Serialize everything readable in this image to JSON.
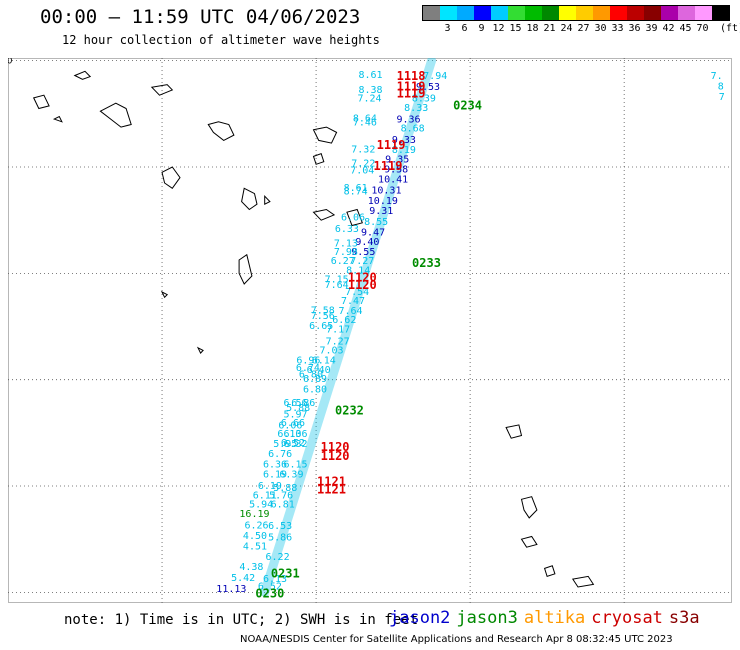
{
  "header": {
    "title": "00:00 – 11:59 UTC 04/06/2023",
    "subtitle": "12 hour collection of altimeter wave heights"
  },
  "legend": {
    "unit_label": "(ft)",
    "bins": [
      {
        "label": "",
        "color": "#7f7f7f"
      },
      {
        "label": "3",
        "color": "#00e5ff"
      },
      {
        "label": "6",
        "color": "#00aaff"
      },
      {
        "label": "9",
        "color": "#0000ff"
      },
      {
        "label": "12",
        "color": "#00ccff"
      },
      {
        "label": "15",
        "color": "#33dd33"
      },
      {
        "label": "18",
        "color": "#00bb00"
      },
      {
        "label": "21",
        "color": "#008800"
      },
      {
        "label": "24",
        "color": "#ffff00"
      },
      {
        "label": "27",
        "color": "#ffcc00"
      },
      {
        "label": "30",
        "color": "#ff9900"
      },
      {
        "label": "33",
        "color": "#ff0000"
      },
      {
        "label": "36",
        "color": "#bb0000"
      },
      {
        "label": "39",
        "color": "#880000"
      },
      {
        "label": "42",
        "color": "#aa00aa"
      },
      {
        "label": "45",
        "color": "#dd66dd"
      },
      {
        "label": "70",
        "color": "#ff99ff"
      },
      {
        "label": "",
        "color": "#000000"
      }
    ]
  },
  "map": {
    "lon_ticks": [
      "165",
      "168",
      "171",
      "174",
      "177"
    ],
    "lat_ticks": [
      "0",
      "2",
      "4",
      "6",
      "8",
      "10"
    ],
    "lon_range": [
      165,
      179.1
    ],
    "lat_range": [
      -0.2,
      10.05
    ],
    "grid": true,
    "projection_note": "x = lon, y = lat (degrees)"
  },
  "colors": {
    "cyan": "#00c0e8",
    "navy": "#0000b4",
    "red": "#e00000",
    "green": "#008c00",
    "dark_red": "#c80000",
    "orange": "#ff9900",
    "track": "#00c0e8",
    "coast": "#000000"
  },
  "track": [
    [
      170.0,
      0.0
    ],
    [
      173.25,
      10.0
    ]
  ],
  "observations": [
    {
      "lon": 172.06,
      "lat": 9.75,
      "text": "8.61",
      "color": "cyan"
    },
    {
      "lon": 173.32,
      "lat": 9.73,
      "text": "7.94",
      "color": "cyan"
    },
    {
      "lon": 173.18,
      "lat": 9.52,
      "text": "9.53",
      "color": "navy"
    },
    {
      "lon": 172.06,
      "lat": 9.47,
      "text": "8.38",
      "color": "cyan"
    },
    {
      "lon": 173.1,
      "lat": 9.31,
      "text": "8.39",
      "color": "cyan"
    },
    {
      "lon": 172.04,
      "lat": 9.31,
      "text": "7.24",
      "color": "cyan"
    },
    {
      "lon": 172.95,
      "lat": 9.13,
      "text": "8.33",
      "color": "cyan"
    },
    {
      "lon": 172.8,
      "lat": 8.91,
      "text": "9.36",
      "color": "navy"
    },
    {
      "lon": 171.95,
      "lat": 8.93,
      "text": "8.64",
      "color": "cyan"
    },
    {
      "lon": 171.95,
      "lat": 8.86,
      "text": "7.46",
      "color": "cyan"
    },
    {
      "lon": 172.88,
      "lat": 8.74,
      "text": "8.68",
      "color": "cyan"
    },
    {
      "lon": 172.71,
      "lat": 8.53,
      "text": "9.33",
      "color": "navy"
    },
    {
      "lon": 171.92,
      "lat": 8.35,
      "text": "7.32",
      "color": "cyan"
    },
    {
      "lon": 172.71,
      "lat": 8.34,
      "text": "8.19",
      "color": "cyan"
    },
    {
      "lon": 172.58,
      "lat": 8.16,
      "text": "9.35",
      "color": "navy"
    },
    {
      "lon": 171.92,
      "lat": 8.08,
      "text": "7.22",
      "color": "cyan"
    },
    {
      "lon": 172.56,
      "lat": 7.97,
      "text": "9.58",
      "color": "navy"
    },
    {
      "lon": 171.9,
      "lat": 7.95,
      "text": "7.04",
      "color": "cyan"
    },
    {
      "lon": 172.5,
      "lat": 7.78,
      "text": "10.41",
      "color": "navy"
    },
    {
      "lon": 171.77,
      "lat": 7.62,
      "text": "8.61",
      "color": "cyan"
    },
    {
      "lon": 172.37,
      "lat": 7.58,
      "text": "10.31",
      "color": "navy"
    },
    {
      "lon": 171.77,
      "lat": 7.56,
      "text": "8.74",
      "color": "cyan"
    },
    {
      "lon": 172.3,
      "lat": 7.38,
      "text": "10.19",
      "color": "navy"
    },
    {
      "lon": 172.27,
      "lat": 7.19,
      "text": "9.31",
      "color": "navy"
    },
    {
      "lon": 171.72,
      "lat": 7.07,
      "text": "6.06",
      "color": "cyan"
    },
    {
      "lon": 172.17,
      "lat": 6.98,
      "text": "8.55",
      "color": "cyan"
    },
    {
      "lon": 171.6,
      "lat": 6.85,
      "text": "6.33",
      "color": "cyan"
    },
    {
      "lon": 172.11,
      "lat": 6.79,
      "text": "9.47",
      "color": "navy"
    },
    {
      "lon": 172.0,
      "lat": 6.61,
      "text": "9.40",
      "color": "navy"
    },
    {
      "lon": 171.58,
      "lat": 6.58,
      "text": "7.13",
      "color": "cyan"
    },
    {
      "lon": 171.92,
      "lat": 6.42,
      "text": "9.55",
      "color": "navy"
    },
    {
      "lon": 171.58,
      "lat": 6.42,
      "text": "7.98",
      "color": "cyan"
    },
    {
      "lon": 171.52,
      "lat": 6.25,
      "text": "6.27",
      "color": "cyan"
    },
    {
      "lon": 171.9,
      "lat": 6.25,
      "text": "7.27",
      "color": "cyan"
    },
    {
      "lon": 171.82,
      "lat": 6.07,
      "text": "8.14",
      "color": "cyan"
    },
    {
      "lon": 171.4,
      "lat": 5.9,
      "text": "7.15",
      "color": "cyan"
    },
    {
      "lon": 171.4,
      "lat": 5.8,
      "text": "7.64",
      "color": "cyan"
    },
    {
      "lon": 171.8,
      "lat": 5.67,
      "text": "7.54",
      "color": "cyan"
    },
    {
      "lon": 171.72,
      "lat": 5.5,
      "text": "7.47",
      "color": "cyan"
    },
    {
      "lon": 171.13,
      "lat": 5.32,
      "text": "7.58",
      "color": "cyan"
    },
    {
      "lon": 171.67,
      "lat": 5.31,
      "text": "7.64",
      "color": "cyan"
    },
    {
      "lon": 171.13,
      "lat": 5.22,
      "text": "7.56",
      "color": "cyan"
    },
    {
      "lon": 171.55,
      "lat": 5.14,
      "text": "6.62",
      "color": "cyan"
    },
    {
      "lon": 171.1,
      "lat": 5.03,
      "text": "6.65",
      "color": "cyan"
    },
    {
      "lon": 171.43,
      "lat": 4.96,
      "text": "7.17",
      "color": "cyan"
    },
    {
      "lon": 171.42,
      "lat": 4.74,
      "text": "7.27",
      "color": "cyan"
    },
    {
      "lon": 171.3,
      "lat": 4.57,
      "text": "7.03",
      "color": "cyan"
    },
    {
      "lon": 170.85,
      "lat": 4.38,
      "text": "6.96",
      "color": "cyan"
    },
    {
      "lon": 171.15,
      "lat": 4.38,
      "text": "6.14",
      "color": "cyan"
    },
    {
      "lon": 170.84,
      "lat": 4.24,
      "text": "6.74",
      "color": "cyan"
    },
    {
      "lon": 171.05,
      "lat": 4.2,
      "text": "6.40",
      "color": "cyan"
    },
    {
      "lon": 170.9,
      "lat": 4.12,
      "text": "6.80",
      "color": "cyan"
    },
    {
      "lon": 170.98,
      "lat": 4.03,
      "text": "6.89",
      "color": "cyan"
    },
    {
      "lon": 170.98,
      "lat": 3.83,
      "text": "6.80",
      "color": "cyan"
    },
    {
      "lon": 170.6,
      "lat": 3.58,
      "text": "6.56",
      "color": "cyan"
    },
    {
      "lon": 170.75,
      "lat": 3.58,
      "text": "6.86",
      "color": "cyan"
    },
    {
      "lon": 170.65,
      "lat": 3.49,
      "text": "5.88",
      "color": "cyan"
    },
    {
      "lon": 170.6,
      "lat": 3.36,
      "text": "5.97",
      "color": "cyan"
    },
    {
      "lon": 170.55,
      "lat": 3.2,
      "text": "6.66",
      "color": "cyan"
    },
    {
      "lon": 170.5,
      "lat": 3.16,
      "text": "6.06",
      "color": "cyan"
    },
    {
      "lon": 170.48,
      "lat": 3.0,
      "text": "6.10",
      "color": "cyan"
    },
    {
      "lon": 170.6,
      "lat": 3.0,
      "text": "6.36",
      "color": "cyan"
    },
    {
      "lon": 170.4,
      "lat": 2.81,
      "text": "5.95",
      "color": "cyan"
    },
    {
      "lon": 170.6,
      "lat": 2.81,
      "text": "6.32",
      "color": "cyan"
    },
    {
      "lon": 170.55,
      "lat": 2.83,
      "text": "6.52",
      "color": "cyan"
    },
    {
      "lon": 170.3,
      "lat": 2.62,
      "text": "6.76",
      "color": "cyan"
    },
    {
      "lon": 170.6,
      "lat": 2.42,
      "text": "6.15",
      "color": "cyan"
    },
    {
      "lon": 170.2,
      "lat": 2.42,
      "text": "6.36",
      "color": "cyan"
    },
    {
      "lon": 170.52,
      "lat": 2.24,
      "text": "6.39",
      "color": "cyan"
    },
    {
      "lon": 170.2,
      "lat": 2.24,
      "text": "6.19",
      "color": "cyan"
    },
    {
      "lon": 170.1,
      "lat": 2.02,
      "text": "6.19",
      "color": "cyan"
    },
    {
      "lon": 170.4,
      "lat": 1.98,
      "text": "5.88",
      "color": "cyan"
    },
    {
      "lon": 170.0,
      "lat": 1.84,
      "text": "6.11",
      "color": "cyan"
    },
    {
      "lon": 170.32,
      "lat": 1.84,
      "text": "5.76",
      "color": "cyan"
    },
    {
      "lon": 169.93,
      "lat": 1.67,
      "text": "5.94",
      "color": "cyan"
    },
    {
      "lon": 170.35,
      "lat": 1.67,
      "text": "6.81",
      "color": "cyan"
    },
    {
      "lon": 169.8,
      "lat": 1.49,
      "text": "16.19",
      "color": "green"
    },
    {
      "lon": 169.84,
      "lat": 1.28,
      "text": "6.26",
      "color": "cyan"
    },
    {
      "lon": 170.3,
      "lat": 1.27,
      "text": "6.53",
      "color": "cyan"
    },
    {
      "lon": 169.81,
      "lat": 1.08,
      "text": "4.50",
      "color": "cyan"
    },
    {
      "lon": 170.3,
      "lat": 1.05,
      "text": "5.86",
      "color": "cyan"
    },
    {
      "lon": 169.81,
      "lat": 0.88,
      "text": "4.51",
      "color": "cyan"
    },
    {
      "lon": 170.25,
      "lat": 0.68,
      "text": "6.22",
      "color": "cyan"
    },
    {
      "lon": 169.74,
      "lat": 0.5,
      "text": "4.38",
      "color": "cyan"
    },
    {
      "lon": 169.58,
      "lat": 0.29,
      "text": "5.42",
      "color": "cyan"
    },
    {
      "lon": 170.2,
      "lat": 0.27,
      "text": "6.13",
      "color": "cyan"
    },
    {
      "lon": 169.35,
      "lat": 0.08,
      "text": "11.13",
      "color": "navy"
    },
    {
      "lon": 170.1,
      "lat": 0.13,
      "text": "6.52",
      "color": "cyan"
    },
    {
      "lon": 178.8,
      "lat": 9.73,
      "text": "7.",
      "color": "cyan"
    },
    {
      "lon": 178.88,
      "lat": 9.53,
      "text": "8",
      "color": "cyan"
    },
    {
      "lon": 178.9,
      "lat": 9.34,
      "text": "7",
      "color": "cyan"
    }
  ],
  "time_labels": [
    {
      "lon": 172.85,
      "lat": 9.73,
      "text": "1118",
      "color": "red"
    },
    {
      "lon": 172.85,
      "lat": 9.53,
      "text": "1119",
      "color": "red"
    },
    {
      "lon": 172.85,
      "lat": 9.4,
      "text": "1119",
      "color": "red"
    },
    {
      "lon": 173.95,
      "lat": 9.18,
      "text": "0234",
      "color": "green"
    },
    {
      "lon": 172.46,
      "lat": 8.43,
      "text": "1119",
      "color": "red"
    },
    {
      "lon": 172.4,
      "lat": 8.04,
      "text": "1119",
      "color": "red"
    },
    {
      "lon": 173.15,
      "lat": 6.21,
      "text": "0233",
      "color": "green"
    },
    {
      "lon": 171.9,
      "lat": 5.94,
      "text": "1120",
      "color": "red"
    },
    {
      "lon": 171.9,
      "lat": 5.8,
      "text": "1120",
      "color": "red"
    },
    {
      "lon": 171.65,
      "lat": 3.44,
      "text": "0232",
      "color": "green"
    },
    {
      "lon": 171.37,
      "lat": 2.75,
      "text": "1120",
      "color": "red"
    },
    {
      "lon": 171.37,
      "lat": 2.58,
      "text": "1120",
      "color": "red"
    },
    {
      "lon": 171.3,
      "lat": 2.1,
      "text": "1121",
      "color": "red"
    },
    {
      "lon": 171.3,
      "lat": 1.95,
      "text": "1121",
      "color": "red"
    },
    {
      "lon": 170.4,
      "lat": 0.37,
      "text": "0231",
      "color": "green"
    },
    {
      "lon": 170.1,
      "lat": 0.0,
      "text": "0230",
      "color": "green"
    }
  ],
  "footer": {
    "note": "note: 1) Time is in UTC; 2) SWH is in feet",
    "satellites": [
      {
        "name": "jason2",
        "color": "#0000cc"
      },
      {
        "name": "jason3",
        "color": "#008800"
      },
      {
        "name": "altika",
        "color": "#ff9900"
      },
      {
        "name": "cryosat",
        "color": "#cc0000"
      },
      {
        "name": "s3a",
        "color": "#880000"
      }
    ],
    "credit": "NOAA/NESDIS Center for Satellite Applications and Research   Apr  8 08:32:45 UTC 2023"
  }
}
